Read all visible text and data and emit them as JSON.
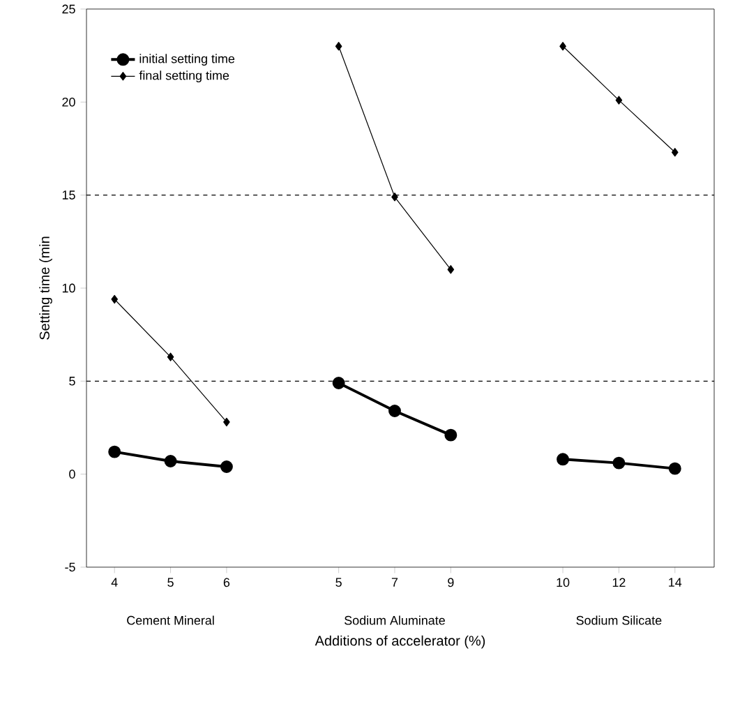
{
  "chart_data": {
    "type": "line",
    "xlabel": "Additions of accelerator (%)",
    "ylabel": "Setting time (min",
    "categories": [
      "4",
      "5",
      "6",
      null,
      "5",
      "7",
      "9",
      null,
      "10",
      "12",
      "14"
    ],
    "series": [
      {
        "name": "initial setting time",
        "color": "#000000",
        "marker": "circle",
        "values": [
          1.2,
          0.7,
          0.4,
          null,
          4.9,
          3.4,
          2.1,
          null,
          0.8,
          0.6,
          0.3
        ]
      },
      {
        "name": "final setting time",
        "color": "#000000",
        "marker": "diamond",
        "values": [
          9.4,
          6.3,
          2.8,
          null,
          23,
          14.9,
          11,
          null,
          23,
          20.1,
          17.3
        ]
      }
    ],
    "ylim": [
      -5,
      25
    ],
    "yticks": [
      -5,
      0,
      5,
      10,
      15,
      20,
      25
    ],
    "grid": false,
    "legend": "top left",
    "line_style": "solid",
    "ref_lines": [
      {
        "axis": "y",
        "value": 15,
        "line_style": "dashed"
      },
      {
        "axis": "y",
        "value": 5,
        "line_style": "dashed"
      }
    ],
    "annotations": [
      "Cement Mineral",
      "Sodium Aluminate",
      "Sodium Silicate"
    ]
  }
}
